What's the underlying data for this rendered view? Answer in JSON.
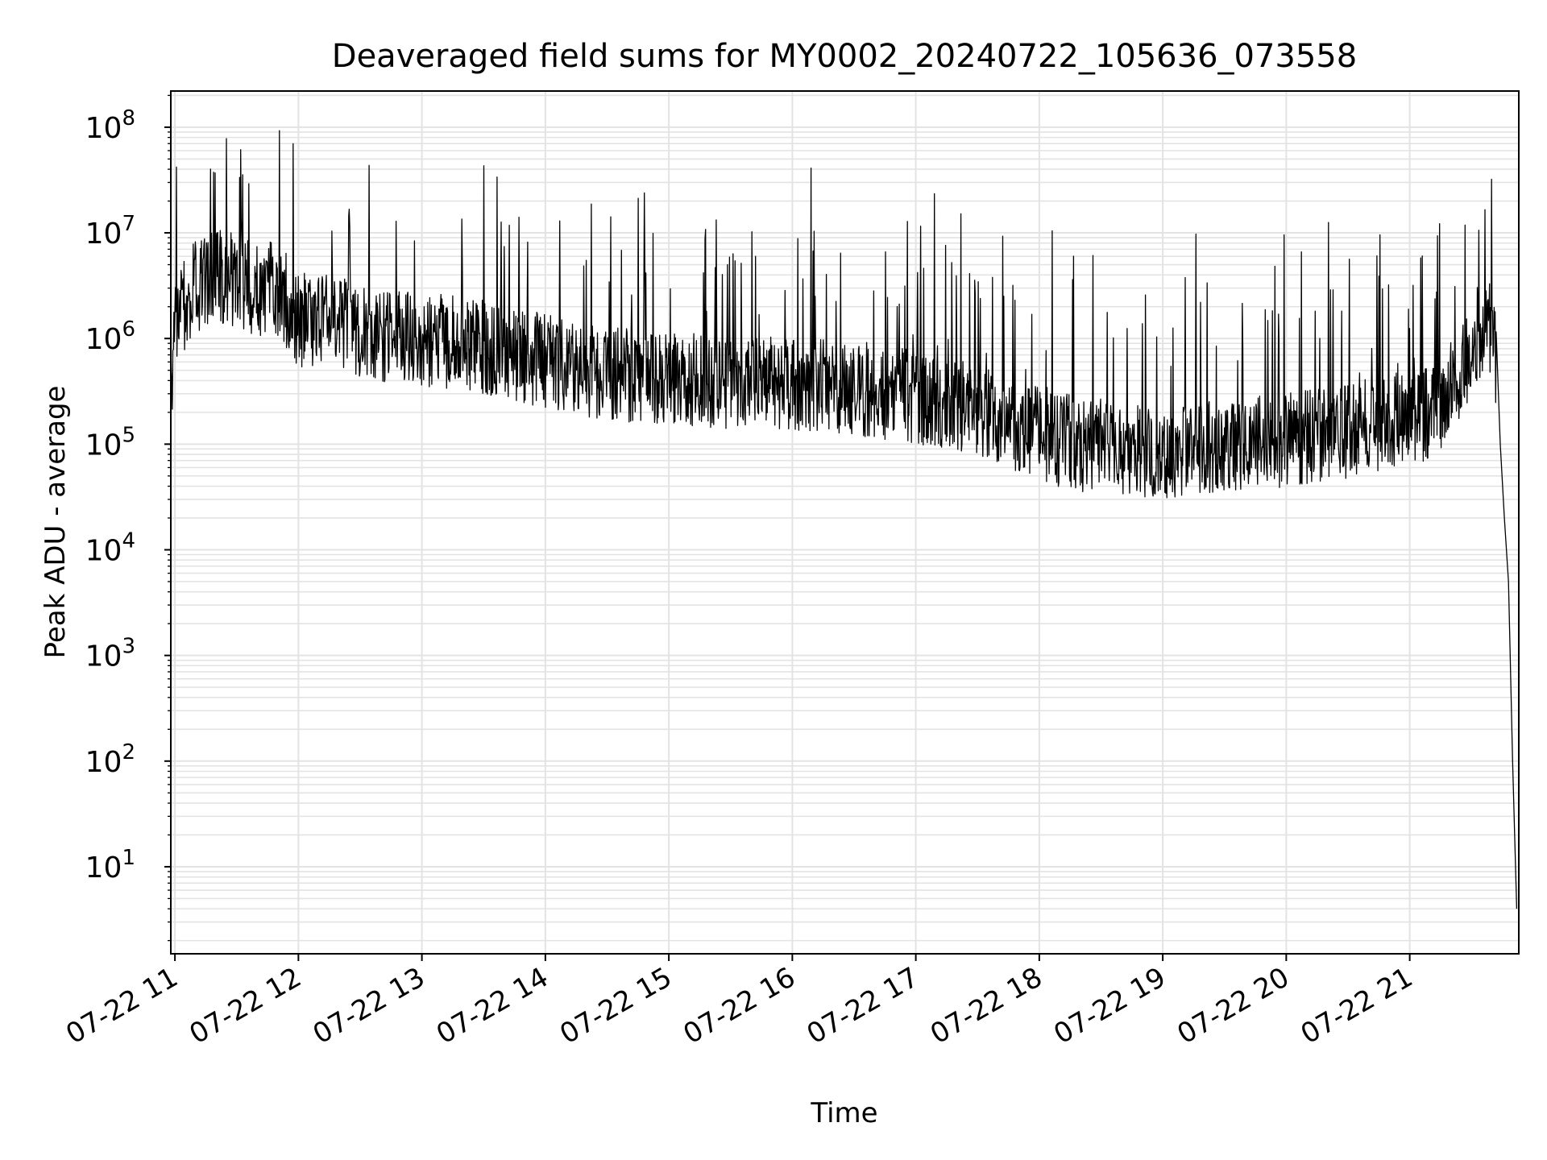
{
  "chart_data": {
    "type": "line",
    "title": "Deaveraged field sums for MY0002_20240722_105636_073558",
    "xlabel": "Time",
    "ylabel": "Peak ADU - average",
    "yscale": "log",
    "ylim": [
      1.5,
      220000000
    ],
    "xlim": [
      "2024-07-22 10:58",
      "2024-07-22 21:53"
    ],
    "grid": true,
    "x_ticks": [
      "07-22 11",
      "07-22 12",
      "07-22 13",
      "07-22 14",
      "07-22 15",
      "07-22 16",
      "07-22 17",
      "07-22 18",
      "07-22 19",
      "07-22 20",
      "07-22 21"
    ],
    "y_ticks": [
      {
        "base": "10",
        "exp": "1"
      },
      {
        "base": "10",
        "exp": "2"
      },
      {
        "base": "10",
        "exp": "3"
      },
      {
        "base": "10",
        "exp": "4"
      },
      {
        "base": "10",
        "exp": "5"
      },
      {
        "base": "10",
        "exp": "6"
      },
      {
        "base": "10",
        "exp": "7"
      },
      {
        "base": "10",
        "exp": "8"
      }
    ],
    "series": [
      {
        "color": "#000000",
        "x": [
          "2024-07-22 10:58",
          "2024-07-22 11:00",
          "2024-07-22 11:10",
          "2024-07-22 11:20",
          "2024-07-22 11:30",
          "2024-07-22 11:40",
          "2024-07-22 11:50",
          "2024-07-22 12:00",
          "2024-07-22 12:10",
          "2024-07-22 12:20",
          "2024-07-22 12:30",
          "2024-07-22 12:40",
          "2024-07-22 12:50",
          "2024-07-22 13:00",
          "2024-07-22 13:20",
          "2024-07-22 13:40",
          "2024-07-22 14:00",
          "2024-07-22 14:20",
          "2024-07-22 14:40",
          "2024-07-22 15:00",
          "2024-07-22 15:20",
          "2024-07-22 15:40",
          "2024-07-22 16:00",
          "2024-07-22 16:20",
          "2024-07-22 16:40",
          "2024-07-22 17:00",
          "2024-07-22 17:20",
          "2024-07-22 17:40",
          "2024-07-22 18:00",
          "2024-07-22 18:20",
          "2024-07-22 18:40",
          "2024-07-22 19:00",
          "2024-07-22 19:20",
          "2024-07-22 19:40",
          "2024-07-22 20:00",
          "2024-07-22 20:20",
          "2024-07-22 20:40",
          "2024-07-22 21:00",
          "2024-07-22 21:10",
          "2024-07-22 21:15",
          "2024-07-22 21:20",
          "2024-07-22 21:25",
          "2024-07-22 21:28",
          "2024-07-22 21:30",
          "2024-07-22 21:32",
          "2024-07-22 21:35",
          "2024-07-22 21:38",
          "2024-07-22 21:40",
          "2024-07-22 21:42",
          "2024-07-22 21:44",
          "2024-07-22 21:46",
          "2024-07-22 21:48",
          "2024-07-22 21:50",
          "2024-07-22 21:52"
        ],
        "y": [
          300000,
          1500000,
          3000000,
          4000000,
          3500000,
          3000000,
          3000000,
          1500000,
          1500000,
          1500000,
          1200000,
          1100000,
          1000000,
          1000000,
          900000,
          750000,
          600000,
          500000,
          450000,
          420000,
          400000,
          380000,
          380000,
          350000,
          320000,
          280000,
          250000,
          180000,
          120000,
          100000,
          90000,
          85000,
          95000,
          100000,
          110000,
          120000,
          150000,
          180000,
          200000,
          250000,
          350000,
          500000,
          700000,
          900000,
          1100000,
          1200000,
          1400000,
          1200000,
          500000,
          100000,
          20000,
          5000,
          100,
          4
        ]
      }
    ]
  }
}
